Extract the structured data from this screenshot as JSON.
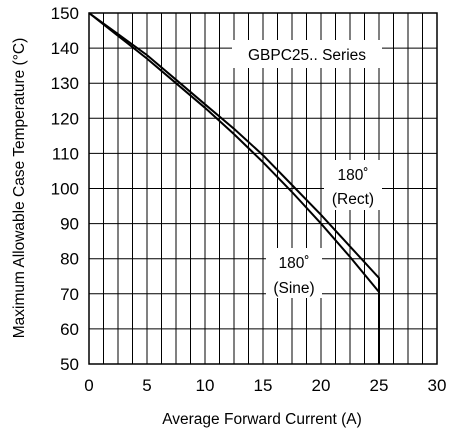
{
  "chart_data": {
    "type": "line",
    "xlabel": "Average Forward Current (A)",
    "ylabel": "Maximum Allowable Case Temperature (°C)",
    "xlim": [
      0,
      30
    ],
    "ylim": [
      50,
      150
    ],
    "x_ticks": [
      0,
      5,
      10,
      15,
      20,
      25,
      30
    ],
    "y_ticks": [
      50,
      60,
      70,
      80,
      90,
      100,
      110,
      120,
      130,
      140,
      150
    ],
    "x_tick_labels": [
      "0",
      "5",
      "10",
      "15",
      "20",
      "25",
      "30"
    ],
    "y_tick_labels": [
      "50",
      "60",
      "70",
      "80",
      "90",
      "100",
      "110",
      "120",
      "130",
      "140",
      "150"
    ],
    "grid": true,
    "x_minor_step": 1.25,
    "series": [
      {
        "label_lines": [
          "180˚",
          "(Rect)"
        ],
        "x": [
          0,
          2.5,
          5,
          7.5,
          10,
          12.5,
          15,
          17.5,
          20,
          22.5,
          25,
          25
        ],
        "y": [
          150,
          144,
          138,
          131,
          124,
          117,
          109.5,
          101,
          92.5,
          83.5,
          74.5,
          50
        ]
      },
      {
        "label_lines": [
          "180˚",
          "(Sine)"
        ],
        "x": [
          0,
          2.5,
          5,
          7.5,
          10,
          12.5,
          15,
          17.5,
          20,
          22.5,
          25,
          25
        ],
        "y": [
          150,
          143.5,
          137,
          130,
          123,
          115.5,
          107.5,
          99,
          90,
          80.5,
          70.5,
          50
        ]
      }
    ],
    "annotations": {
      "series_title": "GBPC25.. Series"
    }
  }
}
